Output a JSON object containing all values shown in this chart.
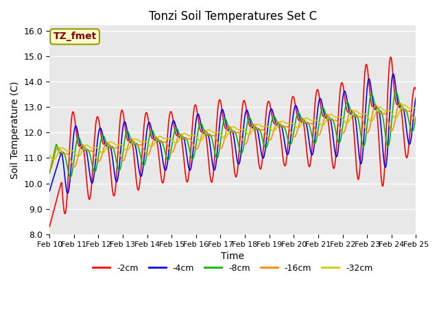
{
  "title": "Tonzi Soil Temperatures Set C",
  "xlabel": "Time",
  "ylabel": "Soil Temperature (C)",
  "ylim": [
    8.0,
    16.2
  ],
  "xlim": [
    0,
    15
  ],
  "xtick_labels": [
    "Feb 10",
    "Feb 11",
    "Feb 12",
    "Feb 13",
    "Feb 14",
    "Feb 15",
    "Feb 16",
    "Feb 17",
    "Feb 18",
    "Feb 19",
    "Feb 20",
    "Feb 21",
    "Feb 22",
    "Feb 23",
    "Feb 24",
    "Feb 25"
  ],
  "legend_label": "TZ_fmet",
  "series_labels": [
    "-2cm",
    "-4cm",
    "-8cm",
    "-16cm",
    "-32cm"
  ],
  "series_colors": [
    "#ff0000",
    "#0000ff",
    "#00bb00",
    "#ff8800",
    "#cccc00"
  ],
  "line_width": 1.2,
  "background_color": "#e8e8e8",
  "fig_background": "#ffffff",
  "grid_color": "#ffffff",
  "yticks": [
    8.0,
    9.0,
    10.0,
    11.0,
    12.0,
    13.0,
    14.0,
    15.0,
    16.0
  ]
}
